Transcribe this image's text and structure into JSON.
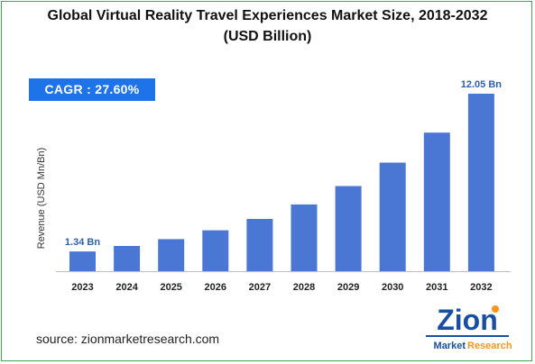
{
  "title_line1": "Global Virtual Reality Travel Experiences Market Size, 2018-2032",
  "title_line2": "(USD Billion)",
  "cagr_label": "CAGR : 27.60%",
  "source": "source: zionmarketresearch.com",
  "logo": {
    "word": "Zion",
    "sub_left": "Market",
    "sub_right": "Research"
  },
  "colors": {
    "bar": "#4a77d4",
    "cagr_bg": "#1e73e8",
    "border": "#3fa64a",
    "value_label": "#2f5fae",
    "logo_blue": "#1a4fa0",
    "logo_orange": "#f7931e"
  },
  "chart_data": {
    "type": "bar",
    "title": "Global Virtual Reality Travel Experiences Market Size, 2018-2032 (USD Billion)",
    "ylabel": "Revenue (USD Mn/Bn)",
    "xlabel": "",
    "categories": [
      "2023",
      "2024",
      "2025",
      "2026",
      "2027",
      "2028",
      "2029",
      "2030",
      "2031",
      "2032"
    ],
    "values": [
      1.34,
      1.71,
      2.18,
      2.78,
      3.55,
      4.53,
      5.78,
      7.37,
      9.41,
      12.05
    ],
    "data_labels": [
      {
        "index": 0,
        "text": "1.34 Bn"
      },
      {
        "index": 9,
        "text": "12.05 Bn"
      }
    ],
    "ylim": [
      0,
      12.05
    ],
    "grid": false,
    "legend": false
  }
}
